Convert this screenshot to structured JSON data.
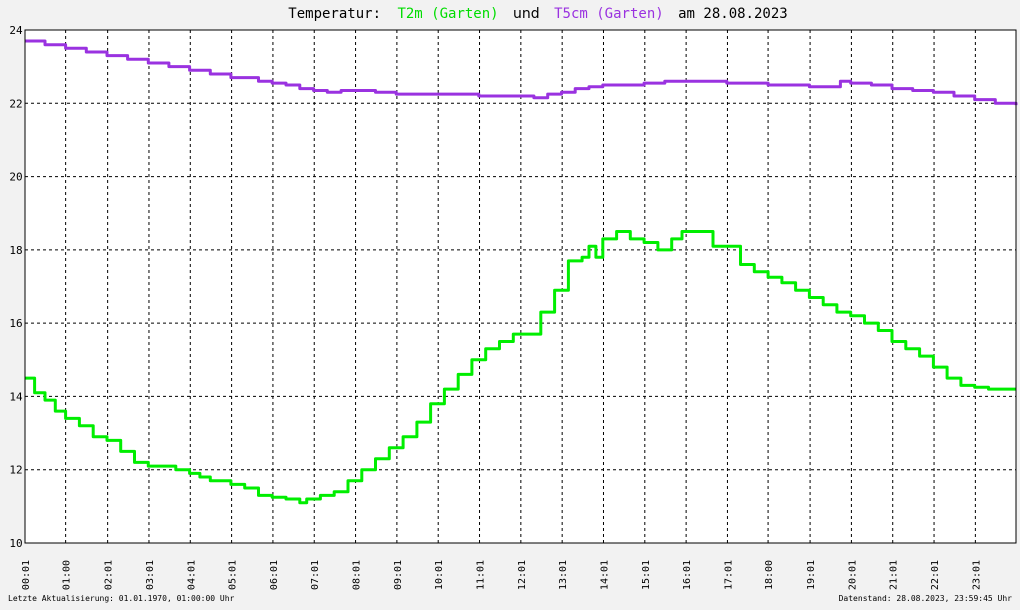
{
  "title": {
    "prefix": "Temperatur:",
    "series1_label": "T2m (Garten)",
    "conjunction": "und",
    "series2_label": "T5cm (Garten)",
    "suffix": "am 28.08.2023"
  },
  "footer": {
    "left": "Letzte Aktualisierung: 01.01.1970, 01:00:00 Uhr",
    "right": "Datenstand: 28.08.2023, 23:59:45 Uhr"
  },
  "colors": {
    "background": "#f2f2f2",
    "plot_background": "#ffffff",
    "grid": "#000000",
    "T2m": "#00ee00",
    "T5cm": "#9a32e0",
    "title_text": "#000000"
  },
  "chart_data": {
    "type": "line",
    "title": "Temperatur: T2m (Garten) und T5cm (Garten) am 28.08.2023",
    "xlabel": "",
    "ylabel": "",
    "ylim": [
      10,
      24
    ],
    "yticks": [
      10,
      12,
      14,
      16,
      18,
      20,
      22,
      24
    ],
    "xlim": [
      "00:01",
      "24:00"
    ],
    "xticks": [
      "00:01",
      "01:00",
      "02:01",
      "03:01",
      "04:01",
      "05:01",
      "06:01",
      "07:01",
      "08:01",
      "09:01",
      "10:01",
      "11:01",
      "12:01",
      "13:01",
      "14:01",
      "15:01",
      "16:01",
      "17:01",
      "18:00",
      "19:01",
      "20:01",
      "21:01",
      "22:01",
      "23:01"
    ],
    "grid": true,
    "legend": "in title",
    "series": [
      {
        "name": "T2m (Garten)",
        "color": "#00ee00",
        "x": [
          "00:01",
          "00:15",
          "00:30",
          "00:45",
          "01:00",
          "01:20",
          "01:40",
          "02:00",
          "02:20",
          "02:40",
          "03:00",
          "03:20",
          "03:40",
          "04:00",
          "04:15",
          "04:30",
          "05:00",
          "05:20",
          "05:40",
          "06:00",
          "06:20",
          "06:40",
          "06:50",
          "07:10",
          "07:30",
          "07:50",
          "08:10",
          "08:30",
          "08:50",
          "09:10",
          "09:30",
          "09:50",
          "10:10",
          "10:30",
          "10:50",
          "11:10",
          "11:30",
          "11:50",
          "12:10",
          "12:30",
          "12:50",
          "13:10",
          "13:30",
          "13:40",
          "13:50",
          "14:00",
          "14:20",
          "14:40",
          "15:00",
          "15:20",
          "15:40",
          "15:55",
          "16:15",
          "16:40",
          "17:00",
          "17:20",
          "17:40",
          "18:00",
          "18:20",
          "18:40",
          "19:00",
          "19:20",
          "19:40",
          "20:00",
          "20:20",
          "20:40",
          "21:00",
          "21:20",
          "21:40",
          "22:00",
          "22:20",
          "22:40",
          "23:00",
          "23:20",
          "23:40",
          "24:00"
        ],
        "y": [
          14.5,
          14.1,
          13.9,
          13.6,
          13.4,
          13.2,
          12.9,
          12.8,
          12.5,
          12.2,
          12.1,
          12.1,
          12.0,
          11.9,
          11.8,
          11.7,
          11.6,
          11.5,
          11.3,
          11.25,
          11.2,
          11.1,
          11.2,
          11.3,
          11.4,
          11.7,
          12.0,
          12.3,
          12.6,
          12.9,
          13.3,
          13.8,
          14.2,
          14.6,
          15.0,
          15.3,
          15.5,
          15.7,
          15.7,
          16.3,
          16.9,
          17.7,
          17.8,
          18.1,
          17.8,
          18.3,
          18.5,
          18.3,
          18.2,
          18.0,
          18.3,
          18.5,
          18.5,
          18.1,
          18.1,
          17.6,
          17.4,
          17.25,
          17.1,
          16.9,
          16.7,
          16.5,
          16.3,
          16.2,
          16.0,
          15.8,
          15.5,
          15.3,
          15.1,
          14.8,
          14.5,
          14.3,
          14.25,
          14.2,
          14.2,
          14.2
        ]
      },
      {
        "name": "T5cm (Garten)",
        "color": "#9a32e0",
        "x": [
          "00:01",
          "00:30",
          "01:00",
          "01:30",
          "02:00",
          "02:30",
          "03:00",
          "03:30",
          "04:00",
          "04:30",
          "05:00",
          "05:20",
          "05:40",
          "06:00",
          "06:20",
          "06:40",
          "07:00",
          "07:20",
          "07:40",
          "08:00",
          "08:30",
          "09:00",
          "09:30",
          "10:00",
          "10:30",
          "11:00",
          "11:30",
          "12:00",
          "12:20",
          "12:40",
          "13:00",
          "13:20",
          "13:40",
          "14:00",
          "14:30",
          "15:00",
          "15:30",
          "16:00",
          "16:30",
          "17:00",
          "17:30",
          "18:00",
          "18:30",
          "19:00",
          "19:30",
          "19:45",
          "20:00",
          "20:30",
          "21:00",
          "21:30",
          "22:00",
          "22:30",
          "23:00",
          "23:30",
          "24:00"
        ],
        "y": [
          23.7,
          23.6,
          23.5,
          23.4,
          23.3,
          23.2,
          23.1,
          23.0,
          22.9,
          22.8,
          22.7,
          22.7,
          22.6,
          22.55,
          22.5,
          22.4,
          22.35,
          22.3,
          22.35,
          22.35,
          22.3,
          22.25,
          22.25,
          22.25,
          22.25,
          22.2,
          22.2,
          22.2,
          22.15,
          22.25,
          22.3,
          22.4,
          22.45,
          22.5,
          22.5,
          22.55,
          22.6,
          22.6,
          22.6,
          22.55,
          22.55,
          22.5,
          22.5,
          22.45,
          22.45,
          22.6,
          22.55,
          22.5,
          22.4,
          22.35,
          22.3,
          22.2,
          22.1,
          22.0,
          21.95
        ]
      }
    ]
  }
}
